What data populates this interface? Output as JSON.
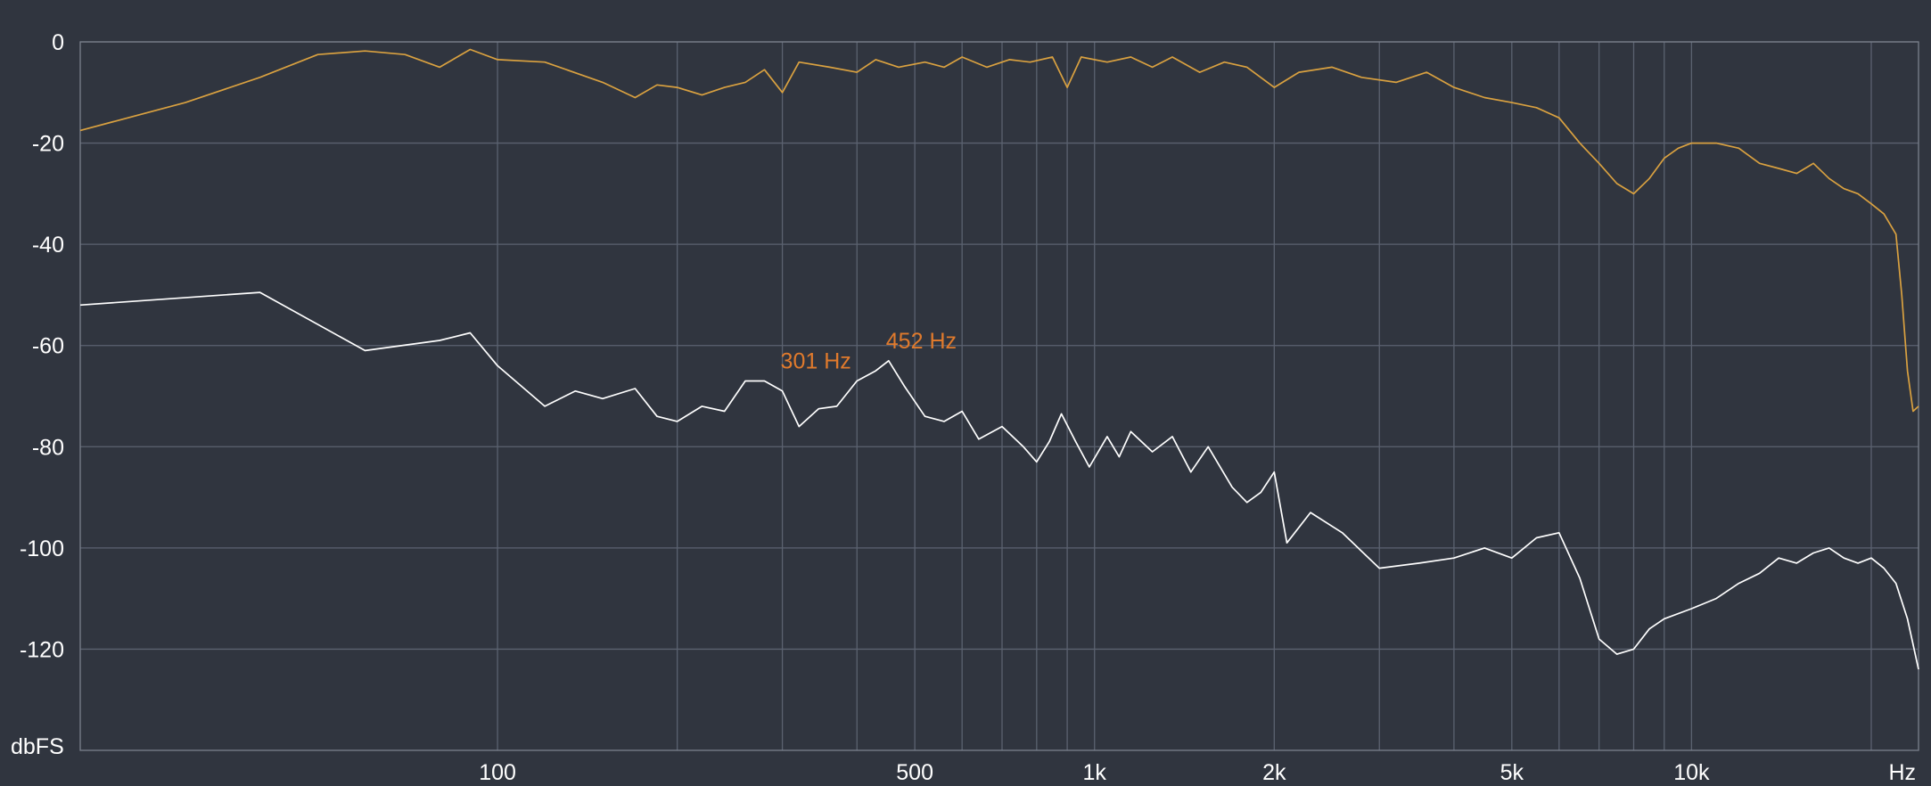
{
  "chart_data": {
    "type": "line",
    "x_scale": "log",
    "xlim": [
      20,
      24000
    ],
    "ylim": [
      -140,
      0
    ],
    "grid": true,
    "ylabel": "dbFS",
    "x_unit_label": "Hz",
    "y_ticks": [
      {
        "value": 0,
        "label": "0"
      },
      {
        "value": -20,
        "label": "-20"
      },
      {
        "value": -40,
        "label": "-40"
      },
      {
        "value": -60,
        "label": "-60"
      },
      {
        "value": -80,
        "label": "-80"
      },
      {
        "value": -100,
        "label": "-100"
      },
      {
        "value": -120,
        "label": "-120"
      }
    ],
    "x_ticks": [
      {
        "value": 100,
        "label": "100"
      },
      {
        "value": 500,
        "label": "500"
      },
      {
        "value": 1000,
        "label": "1k"
      },
      {
        "value": 2000,
        "label": "2k"
      },
      {
        "value": 5000,
        "label": "5k"
      },
      {
        "value": 10000,
        "label": "10k"
      }
    ],
    "x_gridlines": [
      100,
      200,
      300,
      400,
      500,
      600,
      700,
      800,
      900,
      1000,
      2000,
      3000,
      4000,
      5000,
      6000,
      7000,
      8000,
      9000,
      10000,
      20000
    ],
    "series": [
      {
        "color": "#d9a140",
        "points": [
          [
            20,
            -17.5
          ],
          [
            30,
            -12
          ],
          [
            40,
            -7
          ],
          [
            50,
            -2.5
          ],
          [
            60,
            -1.8
          ],
          [
            70,
            -2.5
          ],
          [
            80,
            -5
          ],
          [
            90,
            -1.5
          ],
          [
            100,
            -3.5
          ],
          [
            120,
            -4
          ],
          [
            150,
            -8
          ],
          [
            170,
            -11
          ],
          [
            185,
            -8.5
          ],
          [
            200,
            -9
          ],
          [
            220,
            -10.5
          ],
          [
            240,
            -9
          ],
          [
            260,
            -8
          ],
          [
            280,
            -5.5
          ],
          [
            300,
            -10
          ],
          [
            320,
            -4
          ],
          [
            360,
            -5
          ],
          [
            400,
            -6
          ],
          [
            430,
            -3.5
          ],
          [
            470,
            -5
          ],
          [
            520,
            -4
          ],
          [
            560,
            -5
          ],
          [
            600,
            -3
          ],
          [
            660,
            -5
          ],
          [
            720,
            -3.5
          ],
          [
            780,
            -4
          ],
          [
            850,
            -3
          ],
          [
            900,
            -9
          ],
          [
            950,
            -3
          ],
          [
            1050,
            -4
          ],
          [
            1150,
            -3
          ],
          [
            1250,
            -5
          ],
          [
            1350,
            -3
          ],
          [
            1500,
            -6
          ],
          [
            1650,
            -4
          ],
          [
            1800,
            -5
          ],
          [
            2000,
            -9
          ],
          [
            2200,
            -6
          ],
          [
            2500,
            -5
          ],
          [
            2800,
            -7
          ],
          [
            3200,
            -8
          ],
          [
            3600,
            -6
          ],
          [
            4000,
            -9
          ],
          [
            4500,
            -11
          ],
          [
            5000,
            -12
          ],
          [
            5500,
            -13
          ],
          [
            6000,
            -15
          ],
          [
            6500,
            -20
          ],
          [
            7000,
            -24
          ],
          [
            7500,
            -28
          ],
          [
            8000,
            -30
          ],
          [
            8500,
            -27
          ],
          [
            9000,
            -23
          ],
          [
            9500,
            -21
          ],
          [
            10000,
            -20
          ],
          [
            11000,
            -20
          ],
          [
            12000,
            -21
          ],
          [
            13000,
            -24
          ],
          [
            14000,
            -25
          ],
          [
            15000,
            -26
          ],
          [
            16000,
            -24
          ],
          [
            17000,
            -27
          ],
          [
            18000,
            -29
          ],
          [
            19000,
            -30
          ],
          [
            20000,
            -32
          ],
          [
            21000,
            -34
          ],
          [
            22000,
            -38
          ],
          [
            22500,
            -50
          ],
          [
            23000,
            -65
          ],
          [
            23500,
            -73
          ],
          [
            24000,
            -72
          ]
        ]
      },
      {
        "color": "#ffffff",
        "points": [
          [
            20,
            -52
          ],
          [
            40,
            -49.5
          ],
          [
            60,
            -61
          ],
          [
            80,
            -59
          ],
          [
            90,
            -57.5
          ],
          [
            100,
            -64
          ],
          [
            120,
            -72
          ],
          [
            135,
            -69
          ],
          [
            150,
            -70.5
          ],
          [
            170,
            -68.5
          ],
          [
            185,
            -74
          ],
          [
            200,
            -75
          ],
          [
            220,
            -72
          ],
          [
            240,
            -73
          ],
          [
            260,
            -67
          ],
          [
            280,
            -67
          ],
          [
            300,
            -69
          ],
          [
            320,
            -76
          ],
          [
            345,
            -72.5
          ],
          [
            370,
            -72
          ],
          [
            400,
            -67
          ],
          [
            430,
            -65
          ],
          [
            452,
            -63
          ],
          [
            480,
            -68
          ],
          [
            520,
            -74
          ],
          [
            560,
            -75
          ],
          [
            600,
            -73
          ],
          [
            640,
            -78.5
          ],
          [
            700,
            -76
          ],
          [
            760,
            -80
          ],
          [
            800,
            -83
          ],
          [
            840,
            -79
          ],
          [
            880,
            -73.5
          ],
          [
            930,
            -79
          ],
          [
            980,
            -84
          ],
          [
            1050,
            -78
          ],
          [
            1100,
            -82
          ],
          [
            1150,
            -77
          ],
          [
            1250,
            -81
          ],
          [
            1350,
            -78
          ],
          [
            1450,
            -85
          ],
          [
            1550,
            -80
          ],
          [
            1700,
            -88
          ],
          [
            1800,
            -91
          ],
          [
            1900,
            -89
          ],
          [
            2000,
            -85
          ],
          [
            2100,
            -99
          ],
          [
            2300,
            -93
          ],
          [
            2600,
            -97
          ],
          [
            3000,
            -104
          ],
          [
            3500,
            -103
          ],
          [
            4000,
            -102
          ],
          [
            4500,
            -100
          ],
          [
            5000,
            -102
          ],
          [
            5500,
            -98
          ],
          [
            6000,
            -97
          ],
          [
            6500,
            -106
          ],
          [
            7000,
            -118
          ],
          [
            7500,
            -121
          ],
          [
            8000,
            -120
          ],
          [
            8500,
            -116
          ],
          [
            9000,
            -114
          ],
          [
            10000,
            -112
          ],
          [
            11000,
            -110
          ],
          [
            12000,
            -107
          ],
          [
            13000,
            -105
          ],
          [
            14000,
            -102
          ],
          [
            15000,
            -103
          ],
          [
            16000,
            -101
          ],
          [
            17000,
            -100
          ],
          [
            18000,
            -102
          ],
          [
            19000,
            -103
          ],
          [
            20000,
            -102
          ],
          [
            21000,
            -104
          ],
          [
            22000,
            -107
          ],
          [
            23000,
            -114
          ],
          [
            24000,
            -124
          ]
        ]
      }
    ],
    "peak_markers": [
      {
        "freq": 301,
        "db": -67,
        "label": "301 Hz"
      },
      {
        "freq": 452,
        "db": -63,
        "label": "452 Hz"
      }
    ]
  }
}
